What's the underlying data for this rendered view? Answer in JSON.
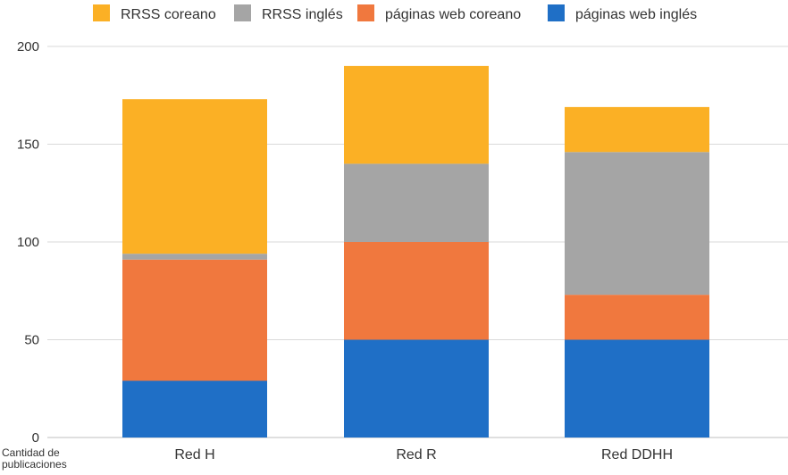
{
  "chart_data": {
    "type": "bar",
    "stacked": true,
    "categories": [
      "Red H",
      "Red R",
      "Red DDHH"
    ],
    "series": [
      {
        "name": "páginas web inglés",
        "color": "#1f6fc6",
        "values": [
          29,
          50,
          50
        ]
      },
      {
        "name": "páginas web coreano",
        "color": "#f0783e",
        "values": [
          62,
          50,
          23
        ]
      },
      {
        "name": "RRSS inglés",
        "color": "#a5a5a5",
        "values": [
          3,
          40,
          73
        ]
      },
      {
        "name": "RRSS coreano",
        "color": "#fbb025",
        "values": [
          79,
          50,
          23
        ]
      }
    ],
    "legend_order": [
      "RRSS coreano",
      "RRSS inglés",
      "páginas web coreano",
      "páginas web inglés"
    ],
    "ylim": [
      0,
      200
    ],
    "yticks": [
      0,
      50,
      100,
      150,
      200
    ],
    "ylabel_lines": [
      "Cantidad de",
      "publicaciones"
    ],
    "xlabel": "",
    "grid": true,
    "legend_position": "top"
  }
}
